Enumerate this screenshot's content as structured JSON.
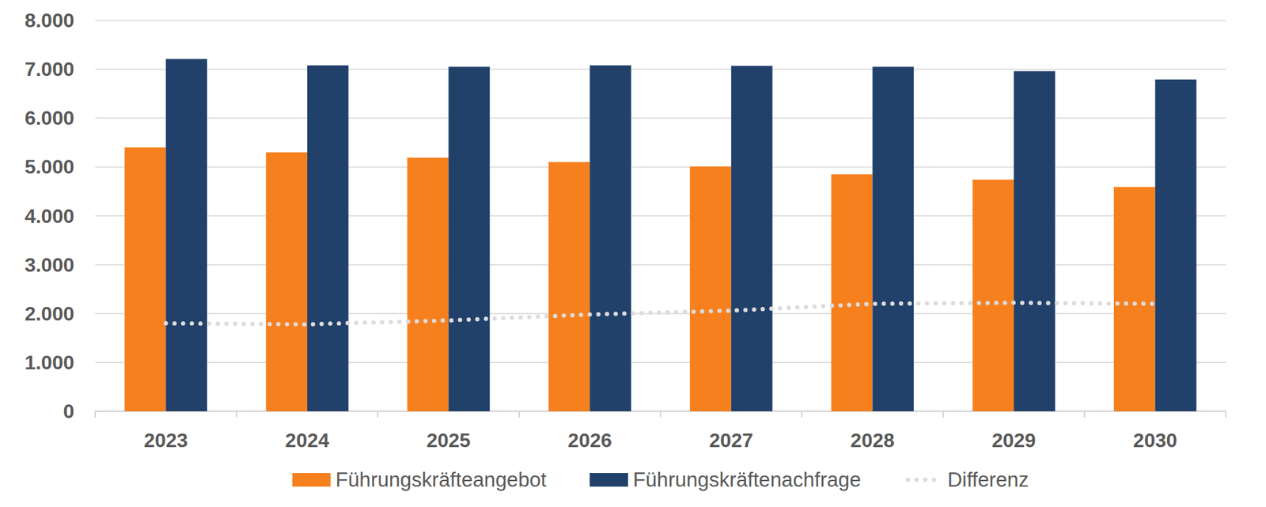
{
  "chart_data": {
    "type": "bar",
    "categories": [
      "2023",
      "2024",
      "2025",
      "2026",
      "2027",
      "2028",
      "2029",
      "2030"
    ],
    "series": [
      {
        "name": "Führungskräfteangebot",
        "type": "bar",
        "color": "#f7801e",
        "values": [
          5400,
          5300,
          5190,
          5100,
          5010,
          4850,
          4740,
          4590
        ]
      },
      {
        "name": "Führungskräftenachfrage",
        "type": "bar",
        "color": "#21416a",
        "values": [
          7210,
          7080,
          7050,
          7080,
          7070,
          7050,
          6960,
          6790
        ]
      },
      {
        "name": "Differenz",
        "type": "line",
        "color": "#dcdcdc",
        "line_style": "dotted",
        "values": [
          1800,
          1780,
          1860,
          1980,
          2060,
          2200,
          2220,
          2200
        ]
      }
    ],
    "ylim": [
      0,
      8000
    ],
    "yticks": [
      0,
      {
        "value": 1000,
        "label": "1.000"
      },
      {
        "value": 2000,
        "label": "2.000"
      },
      {
        "value": 3000,
        "label": "3.000"
      },
      {
        "value": 4000,
        "label": "4.000"
      },
      {
        "value": 5000,
        "label": "5.000"
      },
      {
        "value": 6000,
        "label": "6.000"
      },
      {
        "value": 7000,
        "label": "7.000"
      },
      {
        "value": 8000,
        "label": "8.000"
      }
    ],
    "grid": true,
    "legend": "bottom"
  }
}
